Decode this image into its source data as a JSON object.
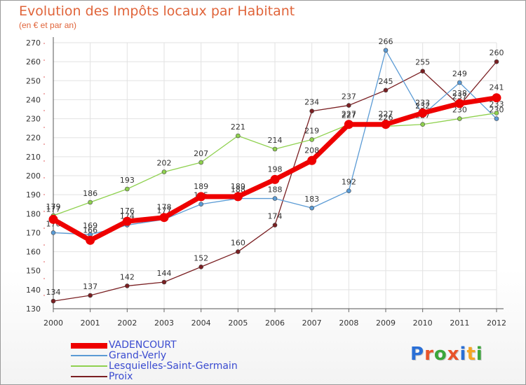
{
  "title": "Evolution des Impôts locaux par Habitant",
  "subtitle": "(en € et par an)",
  "brand": "Proxiti",
  "brand_colors": [
    "#2a6fd6",
    "#e8542a",
    "#3aa63a",
    "#e8542a",
    "#2a6fd6",
    "#f5a623",
    "#3aa63a"
  ],
  "chart_data": {
    "type": "line",
    "categories": [
      "2000",
      "2001",
      "2002",
      "2003",
      "2004",
      "2005",
      "2006",
      "2007",
      "2008",
      "2009",
      "2010",
      "2011",
      "2012"
    ],
    "ylim": [
      130,
      270
    ],
    "yticks": [
      "130",
      "140",
      "150",
      "160",
      "170",
      "180",
      "190",
      "200",
      "210",
      "220",
      "230",
      "240",
      "250",
      "260",
      "270"
    ],
    "series": [
      {
        "name": "Proix",
        "color": "#7a1f22",
        "values": [
          134,
          137,
          142,
          144,
          152,
          160,
          174,
          234,
          237,
          245,
          255,
          237,
          260
        ],
        "labels": [
          "134",
          "137",
          "142",
          "144",
          "152",
          "160",
          "174",
          "234",
          "237",
          "245",
          "255",
          "237",
          "260"
        ]
      },
      {
        "name": "Grand-Verly",
        "color": "#5b9bd5",
        "values": [
          170,
          169,
          174,
          177,
          185,
          188,
          188,
          183,
          192,
          266,
          232,
          249,
          230
        ],
        "labels": [
          "170",
          "169",
          "174",
          "177",
          "185",
          "188",
          "188",
          "183",
          "192",
          "266",
          "232",
          "249",
          "230"
        ]
      },
      {
        "name": "Lesquielles-Saint-Germain",
        "color": "#8fd14f",
        "values": [
          179,
          186,
          193,
          202,
          207,
          221,
          214,
          219,
          227,
          226,
          227,
          230,
          233
        ],
        "labels": [
          "179",
          "186",
          "193",
          "202",
          "207",
          "221",
          "214",
          "219",
          "227",
          "226",
          "227",
          "230",
          "233"
        ]
      },
      {
        "name": "VADENCOURT",
        "color": "#ee0000",
        "values": [
          177,
          166,
          176,
          178,
          189,
          189,
          198,
          208,
          227,
          227,
          233,
          238,
          241
        ],
        "labels": [
          "177",
          "166",
          "176",
          "178",
          "189",
          "189",
          "198",
          "208",
          "227",
          "227",
          "233",
          "238",
          "241"
        ]
      }
    ],
    "legend": [
      {
        "name": "VADENCOURT",
        "color": "#ee0000"
      },
      {
        "name": "Grand-Verly",
        "color": "#5b9bd5"
      },
      {
        "name": "Lesquielles-Saint-Germain",
        "color": "#8fd14f"
      },
      {
        "name": "Proix",
        "color": "#7a1f22"
      }
    ]
  }
}
